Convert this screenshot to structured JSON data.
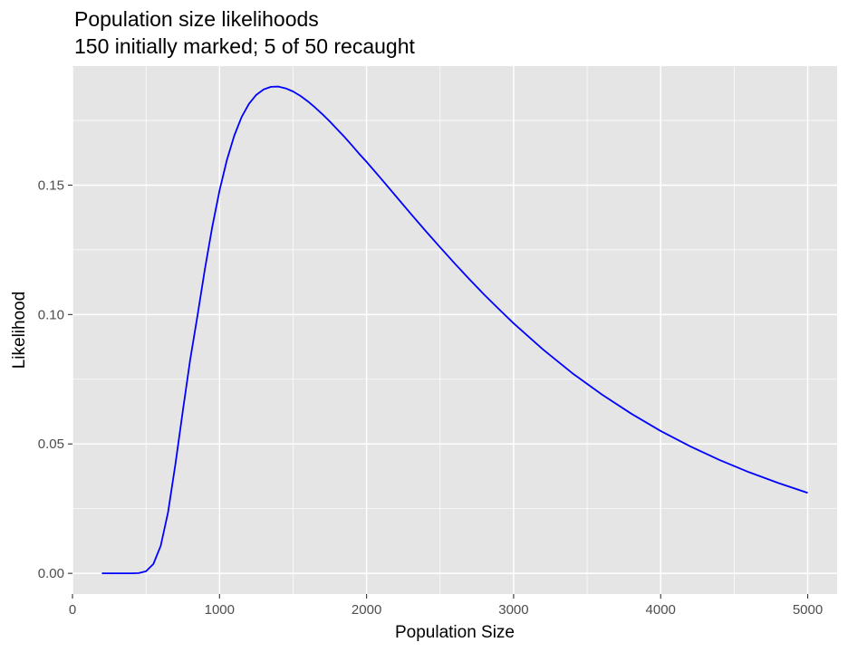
{
  "chart_data": {
    "type": "line",
    "title": "Population size likelihoods",
    "subtitle": "150 initially marked; 5 of 50 recaught",
    "xlabel": "Population Size",
    "ylabel": "Likelihood",
    "xlim": [
      0,
      5200
    ],
    "ylim": [
      -0.008,
      0.196
    ],
    "x_ticks": [
      0,
      1000,
      2000,
      3000,
      4000,
      5000
    ],
    "x_tick_labels": [
      "0",
      "1000",
      "2000",
      "3000",
      "4000",
      "5000"
    ],
    "y_ticks": [
      0,
      0.05,
      0.1,
      0.15
    ],
    "y_tick_labels": [
      "0.00",
      "0.05",
      "0.10",
      "0.15"
    ],
    "grid": true,
    "panel_background": "#e5e5e5",
    "grid_color": "#ffffff",
    "series": [
      {
        "color": "#0000ff",
        "x": [
          200,
          250,
          300,
          350,
          400,
          450,
          500,
          550,
          600,
          650,
          700,
          750,
          800,
          850,
          900,
          950,
          1000,
          1050,
          1100,
          1150,
          1200,
          1250,
          1300,
          1350,
          1400,
          1450,
          1500,
          1550,
          1600,
          1650,
          1700,
          1750,
          1800,
          1850,
          1900,
          1950,
          2000,
          2100,
          2200,
          2300,
          2400,
          2500,
          2600,
          2700,
          2800,
          2900,
          3000,
          3200,
          3400,
          3600,
          3800,
          4000,
          4200,
          4400,
          4600,
          4800,
          5000
        ],
        "y": [
          0.0,
          0.0,
          0.0,
          0.0,
          0.0,
          0.0001,
          0.0008,
          0.0036,
          0.0106,
          0.0236,
          0.0422,
          0.0626,
          0.0824,
          0.0995,
          0.1174,
          0.1337,
          0.1479,
          0.1597,
          0.1691,
          0.1763,
          0.1814,
          0.1849,
          0.187,
          0.188,
          0.1881,
          0.1874,
          0.1862,
          0.1845,
          0.1824,
          0.18,
          0.1774,
          0.1746,
          0.1716,
          0.1686,
          0.1654,
          0.1621,
          0.159,
          0.1524,
          0.1457,
          0.139,
          0.1324,
          0.126,
          0.1197,
          0.1136,
          0.1077,
          0.1021,
          0.0966,
          0.0865,
          0.0773,
          0.0691,
          0.0617,
          0.055,
          0.0491,
          0.0438,
          0.0391,
          0.0349,
          0.0311
        ]
      }
    ]
  }
}
